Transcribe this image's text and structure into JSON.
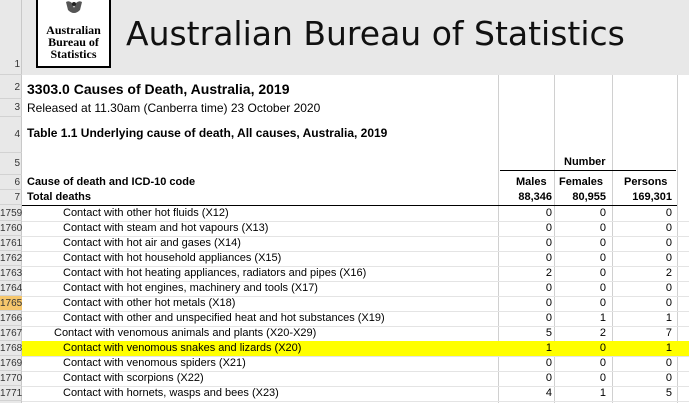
{
  "logo": {
    "line1": "Australian",
    "line2": "Bureau of",
    "line3": "Statistics"
  },
  "title": "Australian Bureau of Statistics",
  "publication": "3303.0 Causes of Death, Australia, 2019",
  "released": "Released at 11.30am (Canberra time) 23 October 2020",
  "table_title": "Table 1.1 Underlying cause of death, All causes, Australia, 2019",
  "header": {
    "number": "Number",
    "cause": "Cause of death and ICD-10 code",
    "males": "Males",
    "females": "Females",
    "persons": "Persons",
    "total_label": "Total deaths",
    "total_males": "88,346",
    "total_females": "80,955",
    "total_persons": "169,301"
  },
  "row_numbers_top": [
    "1",
    "2",
    "3",
    "4",
    "5",
    "6",
    "7"
  ],
  "rows": [
    {
      "rownum": "1759",
      "cause": "Contact with other hot fluids (X12)",
      "males": "0",
      "females": "0",
      "persons": "0",
      "indent": 2
    },
    {
      "rownum": "1760",
      "cause": "Contact with steam and hot vapours (X13)",
      "males": "0",
      "females": "0",
      "persons": "0",
      "indent": 2
    },
    {
      "rownum": "1761",
      "cause": "Contact with hot air and gases (X14)",
      "males": "0",
      "females": "0",
      "persons": "0",
      "indent": 2
    },
    {
      "rownum": "1762",
      "cause": "Contact with hot household appliances (X15)",
      "males": "0",
      "females": "0",
      "persons": "0",
      "indent": 2
    },
    {
      "rownum": "1763",
      "cause": "Contact with hot heating appliances, radiators and pipes (X16)",
      "males": "2",
      "females": "0",
      "persons": "2",
      "indent": 2
    },
    {
      "rownum": "1764",
      "cause": "Contact with hot engines, machinery and tools (X17)",
      "males": "0",
      "females": "0",
      "persons": "0",
      "indent": 2
    },
    {
      "rownum": "1765",
      "cause": "Contact with other hot metals (X18)",
      "males": "0",
      "females": "0",
      "persons": "0",
      "indent": 2,
      "selected": true
    },
    {
      "rownum": "1766",
      "cause": "Contact with other and unspecified heat and hot substances (X19)",
      "males": "0",
      "females": "1",
      "persons": "1",
      "indent": 2
    },
    {
      "rownum": "1767",
      "cause": "Contact with venomous animals and plants (X20-X29)",
      "males": "5",
      "females": "2",
      "persons": "7",
      "indent": 1
    },
    {
      "rownum": "1768",
      "cause": "Contact with venomous snakes and lizards (X20)",
      "males": "1",
      "females": "0",
      "persons": "1",
      "indent": 2,
      "highlight": true
    },
    {
      "rownum": "1769",
      "cause": "Contact with venomous spiders (X21)",
      "males": "0",
      "females": "0",
      "persons": "0",
      "indent": 2
    },
    {
      "rownum": "1770",
      "cause": "Contact with scorpions (X22)",
      "males": "0",
      "females": "0",
      "persons": "0",
      "indent": 2
    },
    {
      "rownum": "1771",
      "cause": "Contact with hornets, wasps and bees (X23)",
      "males": "4",
      "females": "1",
      "persons": "5",
      "indent": 2
    }
  ]
}
